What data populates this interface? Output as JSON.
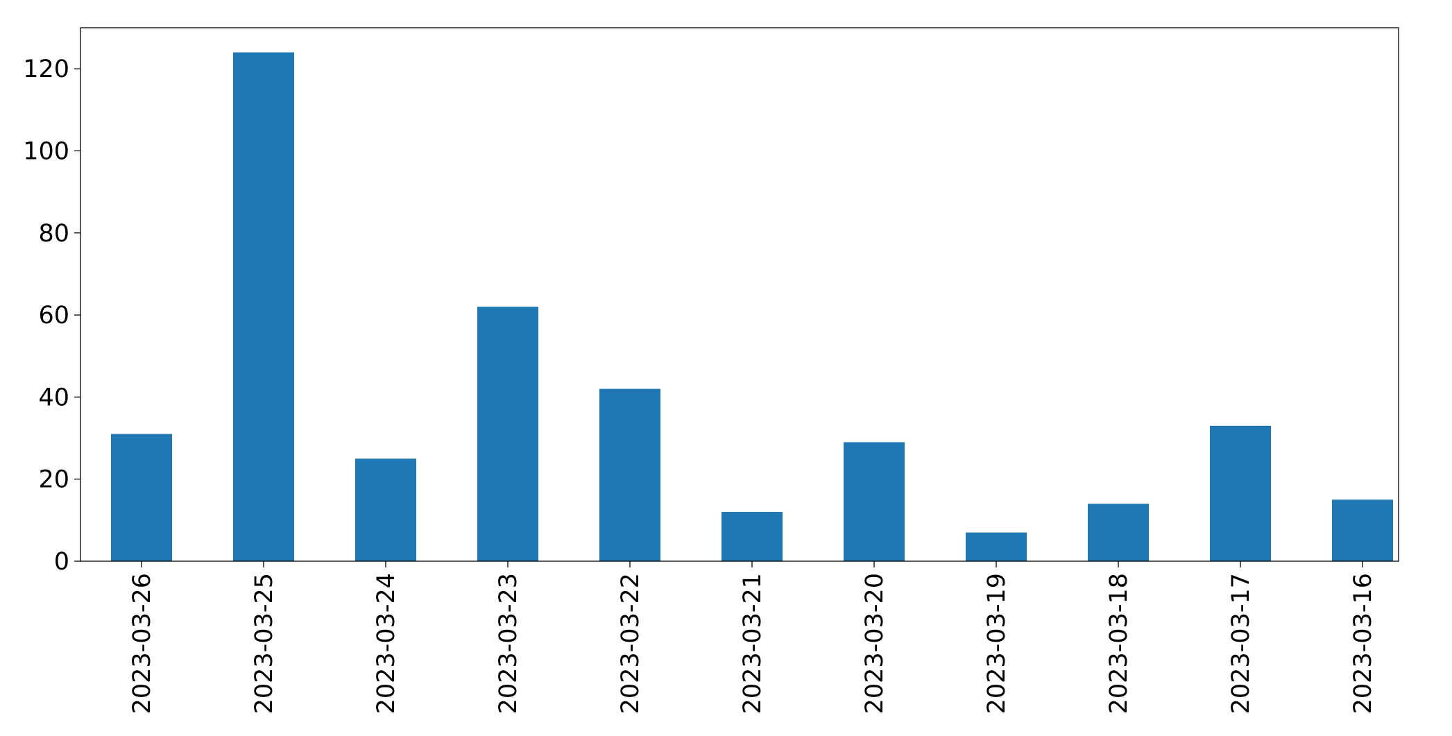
{
  "chart_data": {
    "type": "bar",
    "categories": [
      "2023-03-26",
      "2023-03-25",
      "2023-03-24",
      "2023-03-23",
      "2023-03-22",
      "2023-03-21",
      "2023-03-20",
      "2023-03-19",
      "2023-03-18",
      "2023-03-17",
      "2023-03-16"
    ],
    "values": [
      31,
      124,
      25,
      62,
      42,
      12,
      29,
      7,
      14,
      33,
      15
    ],
    "color": "#1f77b4",
    "ylim": [
      0,
      130
    ],
    "yticks": [
      0,
      20,
      40,
      60,
      80,
      100,
      120
    ],
    "grid": false
  }
}
